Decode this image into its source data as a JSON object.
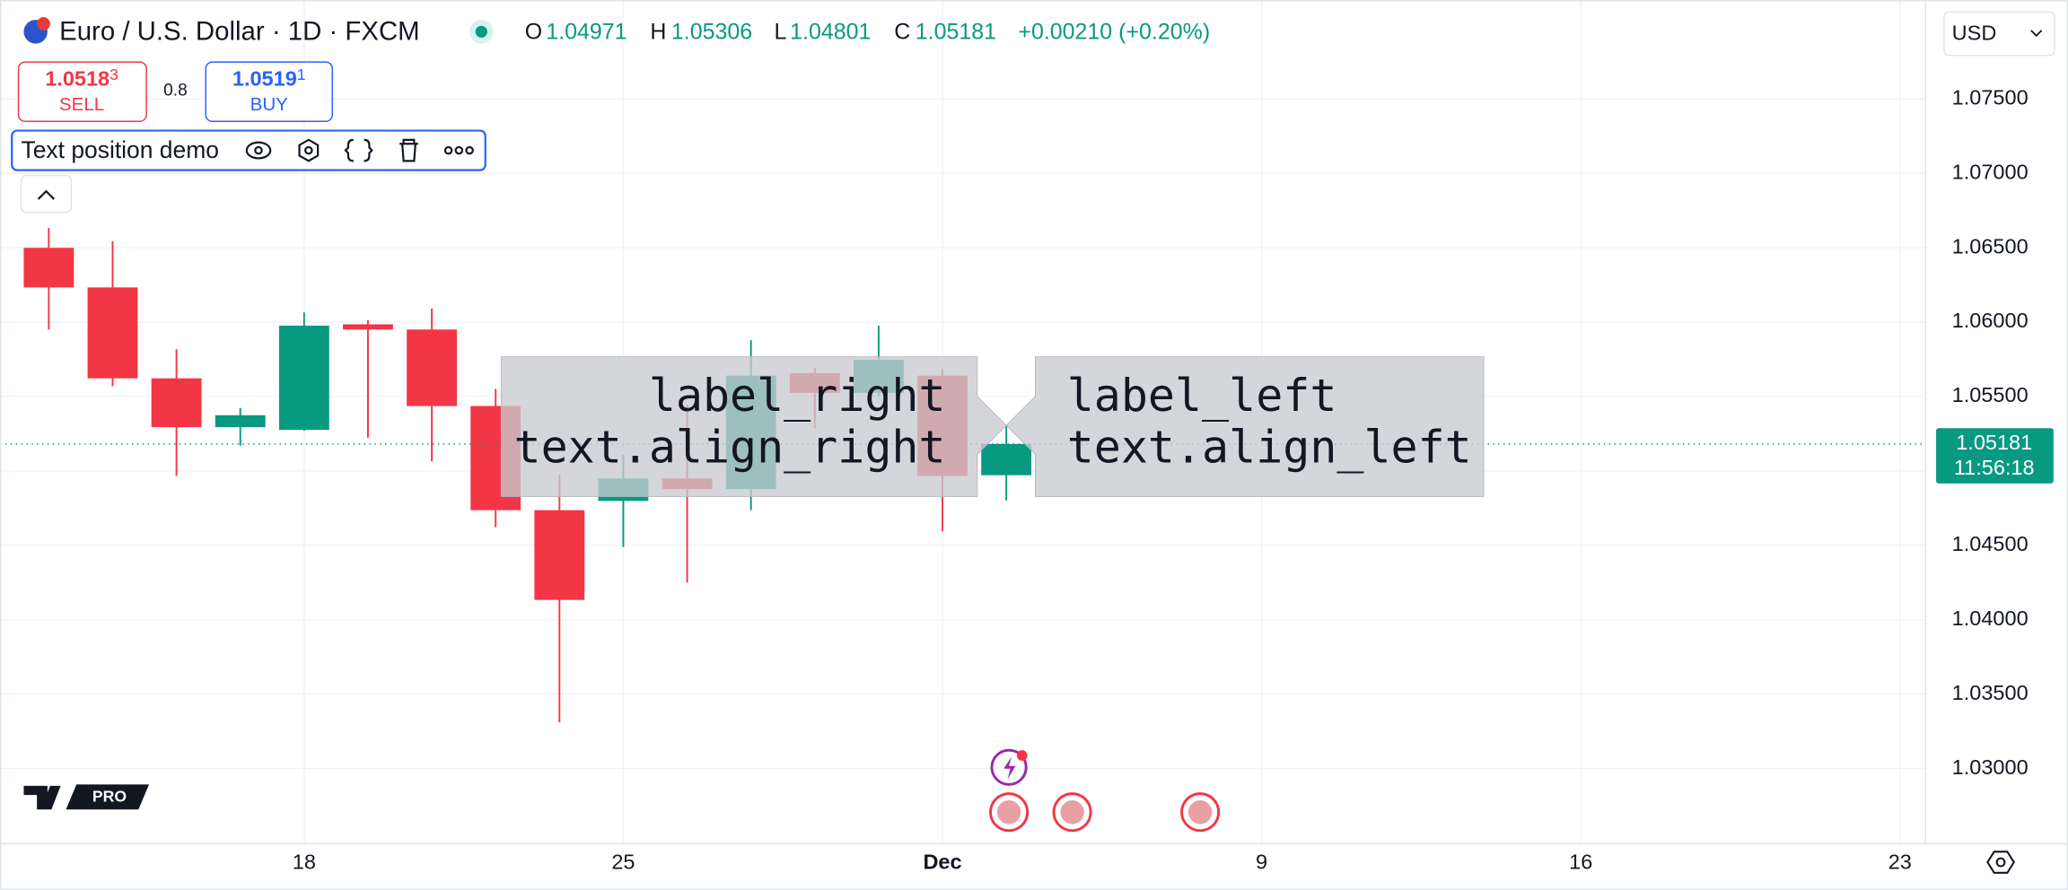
{
  "ui": {
    "symbol": "Euro / U.S. Dollar · 1D · FXCM",
    "ohlc_labels": [
      "O",
      "H",
      "L",
      "C"
    ],
    "change": "+0.00210 (+0.20%)",
    "sell": {
      "price": "1.0518",
      "pip": "3",
      "label": "SELL"
    },
    "spread": "0.8",
    "buy": {
      "price": "1.0519",
      "pip": "1",
      "label": "BUY"
    },
    "indicator": "Text position demo",
    "currency": "USD",
    "countdown": "11:56:18",
    "logo": "PRO"
  },
  "chart_data": {
    "type": "candlestick",
    "x": [
      "Nov 12",
      "Nov 13",
      "Nov 14",
      "Nov 15",
      "Nov 18",
      "Nov 19",
      "Nov 20",
      "Nov 21",
      "Nov 22",
      "Nov 25",
      "Nov 26",
      "Nov 27",
      "Nov 28",
      "Nov 29",
      "Dec 2",
      "Dec 3"
    ],
    "open": [
      1.06499,
      1.06233,
      1.05622,
      1.05294,
      1.05276,
      1.05985,
      1.0595,
      1.05436,
      1.04736,
      1.04798,
      1.04949,
      1.04878,
      1.05657,
      1.05524,
      1.0564,
      1.04971
    ],
    "high": [
      1.06632,
      1.06543,
      1.05817,
      1.05423,
      1.06065,
      1.06012,
      1.06091,
      1.05551,
      1.04975,
      1.05108,
      1.05445,
      1.05879,
      1.05693,
      1.05976,
      1.05684,
      1.05306
    ],
    "low": [
      1.0595,
      1.05569,
      1.04966,
      1.0517,
      1.0527,
      1.05223,
      1.05064,
      1.04621,
      1.0331,
      1.04488,
      1.04249,
      1.04736,
      1.05285,
      1.055,
      1.04594,
      1.04801
    ],
    "close": [
      1.06233,
      1.05622,
      1.05294,
      1.05374,
      1.05976,
      1.0595,
      1.05436,
      1.04736,
      1.04133,
      1.04949,
      1.04878,
      1.0564,
      1.05524,
      1.05746,
      1.04966,
      1.05181
    ],
    "up_color": "#089981",
    "down_color": "#f23645",
    "ylim": [
      1.02494,
      1.08164
    ],
    "yticks": [
      {
        "value": 1.03,
        "label": "1.03000"
      },
      {
        "value": 1.035,
        "label": "1.03500"
      },
      {
        "value": 1.04,
        "label": "1.04000"
      },
      {
        "value": 1.045,
        "label": "1.04500"
      },
      {
        "value": 1.05,
        "label": "1.05000"
      },
      {
        "value": 1.055,
        "label": "1.05500"
      },
      {
        "value": 1.06,
        "label": "1.06000"
      },
      {
        "value": 1.065,
        "label": "1.06500"
      },
      {
        "value": 1.07,
        "label": "1.07000"
      },
      {
        "value": 1.075,
        "label": "1.07500"
      }
    ],
    "xticks": [
      {
        "value": "Nov 18",
        "label": "18"
      },
      {
        "value": "Nov 25",
        "label": "25"
      },
      {
        "value": "Dec 2",
        "label": "Dec"
      },
      {
        "value": "Dec 9",
        "label": "9"
      },
      {
        "value": "Dec 16",
        "label": "16"
      },
      {
        "value": "Dec 23",
        "label": "23"
      }
    ],
    "grid": true,
    "annotations": [
      {
        "lines": [
          "label_right",
          "text.align_right"
        ],
        "align": "right",
        "x": "Dec 3",
        "y": 1.05306
      },
      {
        "lines": [
          "label_left",
          "text.align_left"
        ],
        "align": "left",
        "x": "Dec 3",
        "y": 1.05306
      }
    ]
  }
}
